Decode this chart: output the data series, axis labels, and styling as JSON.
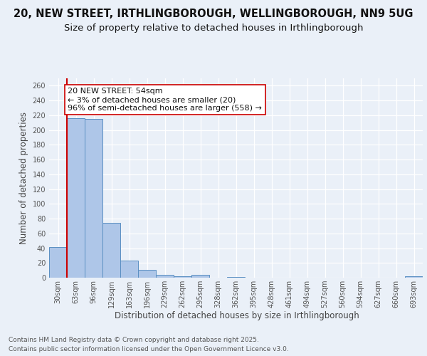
{
  "title_line1": "20, NEW STREET, IRTHLINGBOROUGH, WELLINGBOROUGH, NN9 5UG",
  "title_line2": "Size of property relative to detached houses in Irthlingborough",
  "xlabel": "Distribution of detached houses by size in Irthlingborough",
  "ylabel": "Number of detached properties",
  "categories": [
    "30sqm",
    "63sqm",
    "96sqm",
    "129sqm",
    "163sqm",
    "196sqm",
    "229sqm",
    "262sqm",
    "295sqm",
    "328sqm",
    "362sqm",
    "395sqm",
    "428sqm",
    "461sqm",
    "494sqm",
    "527sqm",
    "560sqm",
    "594sqm",
    "627sqm",
    "660sqm",
    "693sqm"
  ],
  "values": [
    41,
    216,
    215,
    74,
    23,
    11,
    4,
    2,
    4,
    0,
    1,
    0,
    0,
    0,
    0,
    0,
    0,
    0,
    0,
    0,
    2
  ],
  "bar_color": "#aec6e8",
  "bar_edge_color": "#5a8fc2",
  "vline_color": "#cc0000",
  "annotation_text": "20 NEW STREET: 54sqm\n← 3% of detached houses are smaller (20)\n96% of semi-detached houses are larger (558) →",
  "annotation_box_color": "#ffffff",
  "annotation_box_edge_color": "#cc0000",
  "ylim": [
    0,
    270
  ],
  "yticks": [
    0,
    20,
    40,
    60,
    80,
    100,
    120,
    140,
    160,
    180,
    200,
    220,
    240,
    260
  ],
  "bg_color": "#eaf0f8",
  "plot_bg_color": "#eaf0f8",
  "grid_color": "#ffffff",
  "footer_line1": "Contains HM Land Registry data © Crown copyright and database right 2025.",
  "footer_line2": "Contains public sector information licensed under the Open Government Licence v3.0.",
  "title_fontsize": 10.5,
  "subtitle_fontsize": 9.5,
  "tick_fontsize": 7,
  "label_fontsize": 8.5,
  "annotation_fontsize": 8,
  "footer_fontsize": 6.5
}
